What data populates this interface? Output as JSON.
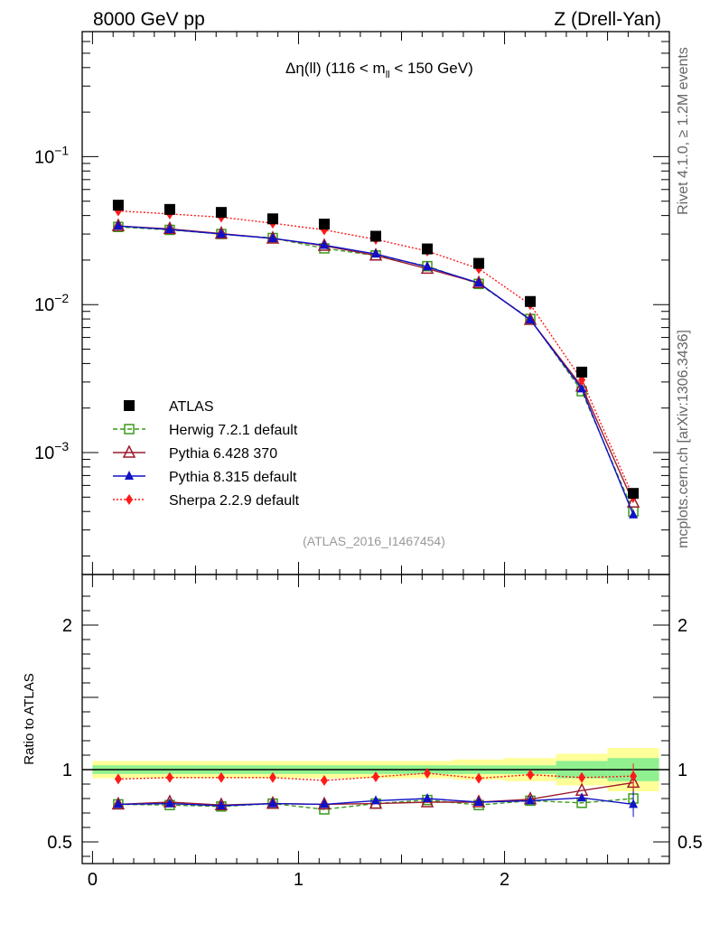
{
  "header": {
    "left": "8000 GeV pp",
    "right": "Z (Drell-Yan)"
  },
  "side_labels": {
    "rivet": "Rivet 4.1.0, ≥ 1.2M events",
    "mcplots": "mcplots.cern.ch [arXiv:1306.3436]"
  },
  "chart_data": [
    {
      "type": "scatter",
      "panel": "main",
      "title": "Δη(ll) (116 < m_ll < 150 GeV)",
      "title_parts": {
        "pre": "Δη(ll) (116 < m",
        "sub": "ll",
        "post": " < 150 GeV)"
      },
      "yscale": "log",
      "ylim": [
        0.00015,
        0.7
      ],
      "xlim": [
        -0.05,
        2.8
      ],
      "yticks": [
        {
          "value": 0.1,
          "base": "10",
          "exp": "−1"
        },
        {
          "value": 0.01,
          "base": "10",
          "exp": "−2"
        },
        {
          "value": 0.001,
          "base": "10",
          "exp": "−3"
        }
      ],
      "watermark": "(ATLAS_2016_I1467454)",
      "legend_position": "lower-left",
      "x": [
        0.125,
        0.375,
        0.625,
        0.875,
        1.125,
        1.375,
        1.625,
        1.875,
        2.125,
        2.375,
        2.625
      ],
      "series": [
        {
          "name": "ATLAS",
          "marker": "square",
          "color": "#000000",
          "line": "none",
          "values": [
            0.047,
            0.044,
            0.042,
            0.038,
            0.035,
            0.029,
            0.0238,
            0.019,
            0.0105,
            0.0035,
            0.00053
          ]
        },
        {
          "name": "Herwig 7.2.1 default",
          "marker": "open-square",
          "color": "#3a9a1a",
          "line": "dashed",
          "values": [
            0.0335,
            0.032,
            0.03,
            0.0282,
            0.024,
            0.0215,
            0.0182,
            0.0138,
            0.008,
            0.0026,
            0.0004
          ]
        },
        {
          "name": "Pythia 6.428 370",
          "marker": "open-triangle",
          "color": "#9b1b2e",
          "line": "solid",
          "values": [
            0.034,
            0.0325,
            0.0302,
            0.028,
            0.025,
            0.0215,
            0.0175,
            0.014,
            0.0079,
            0.0028,
            0.00046
          ]
        },
        {
          "name": "Pythia 8.315 default",
          "marker": "triangle",
          "color": "#1010c8",
          "line": "solid",
          "values": [
            0.034,
            0.0322,
            0.03,
            0.028,
            0.0252,
            0.022,
            0.018,
            0.014,
            0.0079,
            0.0027,
            0.00038
          ]
        },
        {
          "name": "Sherpa 2.2.9 default",
          "marker": "diamond",
          "color": "#ff1a1a",
          "line": "dotted",
          "values": [
            0.043,
            0.041,
            0.039,
            0.0355,
            0.032,
            0.0276,
            0.023,
            0.0175,
            0.01,
            0.0031,
            0.0005
          ]
        }
      ]
    },
    {
      "type": "scatter",
      "panel": "ratio",
      "ylabel": "Ratio to ATLAS",
      "ylim": [
        0.35,
        2.35
      ],
      "xlim": [
        -0.05,
        2.8
      ],
      "yticks": [
        {
          "value": 0.5,
          "label": "0.5"
        },
        {
          "value": 1,
          "label": "1"
        },
        {
          "value": 2,
          "label": "2"
        }
      ],
      "xticks": [
        {
          "value": 0,
          "label": "0"
        },
        {
          "value": 1,
          "label": "1"
        },
        {
          "value": 2,
          "label": "2"
        }
      ],
      "reference_line": 1,
      "uncertainty_bands": {
        "bins": [
          [
            0,
            0.25
          ],
          [
            0.25,
            0.5
          ],
          [
            0.5,
            0.75
          ],
          [
            0.75,
            1.0
          ],
          [
            1.0,
            1.25
          ],
          [
            1.25,
            1.5
          ],
          [
            1.5,
            1.75
          ],
          [
            1.75,
            2.0
          ],
          [
            2.0,
            2.25
          ],
          [
            2.25,
            2.5
          ],
          [
            2.5,
            2.75
          ]
        ],
        "stat": [
          0.03,
          0.03,
          0.03,
          0.03,
          0.03,
          0.03,
          0.03,
          0.03,
          0.03,
          0.06,
          0.08
        ],
        "total": [
          0.06,
          0.06,
          0.06,
          0.06,
          0.06,
          0.06,
          0.06,
          0.07,
          0.08,
          0.11,
          0.15
        ],
        "stat_color": "#90f090",
        "total_color": "#ffff99"
      },
      "x": [
        0.125,
        0.375,
        0.625,
        0.875,
        1.125,
        1.375,
        1.625,
        1.875,
        2.125,
        2.375,
        2.625
      ],
      "series": [
        {
          "name": "Herwig 7.2.1 default",
          "values": [
            0.76,
            0.755,
            0.745,
            0.765,
            0.725,
            0.765,
            0.79,
            0.755,
            0.785,
            0.77,
            0.8
          ]
        },
        {
          "name": "Pythia 6.428 370",
          "values": [
            0.76,
            0.775,
            0.755,
            0.765,
            0.76,
            0.765,
            0.775,
            0.775,
            0.795,
            0.855,
            0.91
          ]
        },
        {
          "name": "Pythia 8.315 default",
          "values": [
            0.76,
            0.765,
            0.75,
            0.765,
            0.76,
            0.785,
            0.8,
            0.775,
            0.785,
            0.805,
            0.76
          ]
        },
        {
          "name": "Sherpa 2.2.9 default",
          "values": [
            0.935,
            0.945,
            0.945,
            0.945,
            0.925,
            0.95,
            0.975,
            0.94,
            0.965,
            0.945,
            0.955
          ]
        }
      ]
    }
  ]
}
